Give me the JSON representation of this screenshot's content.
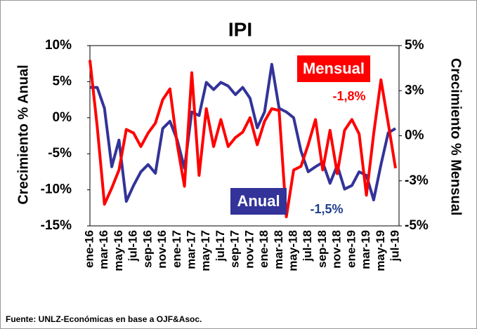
{
  "chart_data": {
    "type": "line",
    "title": "IPI",
    "y_label": "Crecimiento % Anual",
    "y2_label": "Crecimiento % Mensual",
    "source": "Fuente: UNLZ-Económicas en base a OJF&Asoc.",
    "categories": [
      "ene-16",
      null,
      "mar-16",
      null,
      "may-16",
      null,
      "jul-16",
      null,
      "sep-16",
      null,
      "nov-16",
      null,
      "ene-17",
      null,
      "mar-17",
      null,
      "may-17",
      null,
      "jul-17",
      null,
      "sep-17",
      null,
      "nov-17",
      null,
      "ene-18",
      null,
      "mar-18",
      null,
      "may-18",
      null,
      "jul-18",
      null,
      "sep-18",
      null,
      "nov-18",
      null,
      "ene-19",
      null,
      "mar-19",
      null,
      "may-19",
      null,
      "jul-19"
    ],
    "ylim": [
      -15,
      10
    ],
    "yticks": [
      {
        "value": -15,
        "label": "-15%"
      },
      {
        "value": -10,
        "label": "-10%"
      },
      {
        "value": -5,
        "label": "-5%"
      },
      {
        "value": 0,
        "label": "0%"
      },
      {
        "value": 5,
        "label": "5%"
      },
      {
        "value": 10,
        "label": "10%"
      }
    ],
    "y2lim": [
      -5,
      5
    ],
    "y2ticks": [
      {
        "value": -5,
        "label": "-5%"
      },
      {
        "value": -2.5,
        "label": "-3%"
      },
      {
        "value": 0,
        "label": "0%"
      },
      {
        "value": 2.5,
        "label": "3%"
      },
      {
        "value": 5,
        "label": "5%"
      }
    ],
    "series": [
      {
        "name": "Anual",
        "color": "#333399",
        "axis": "y",
        "values": [
          4.2,
          4.2,
          1.3,
          -6.8,
          -3.1,
          -11.6,
          -9.4,
          -7.5,
          -6.5,
          -7.7,
          -1.5,
          -0.5,
          -3.1,
          -7.0,
          0.8,
          0.3,
          4.9,
          3.9,
          4.9,
          4.4,
          3.2,
          4.2,
          2.7,
          -1.4,
          0.8,
          7.4,
          1.3,
          0.8,
          0.0,
          -4.6,
          -7.5,
          -6.8,
          -6.2,
          -9.1,
          -6.6,
          -9.9,
          -9.4,
          -7.5,
          -8.0,
          -11.4,
          -6.5,
          -2.1,
          -1.5
        ]
      },
      {
        "name": "Mensual",
        "color": "#ff0000",
        "axis": "y2",
        "values": [
          4.2,
          0.5,
          -3.8,
          -2.9,
          -1.9,
          0.35,
          0.15,
          -0.6,
          0.15,
          0.7,
          2.0,
          2.6,
          -0.5,
          -2.8,
          3.5,
          -2.2,
          1.5,
          -0.6,
          0.9,
          -0.6,
          -0.1,
          0.2,
          1.0,
          -0.5,
          0.8,
          1.5,
          1.4,
          -4.5,
          -1.9,
          -1.7,
          -0.5,
          0.9,
          -1.9,
          0.3,
          -2.1,
          0.3,
          0.9,
          0.1,
          -3.3,
          0.1,
          3.1,
          0.7,
          -1.8
        ]
      }
    ],
    "annotations": [
      "-1,8%",
      "-1,5%"
    ]
  }
}
